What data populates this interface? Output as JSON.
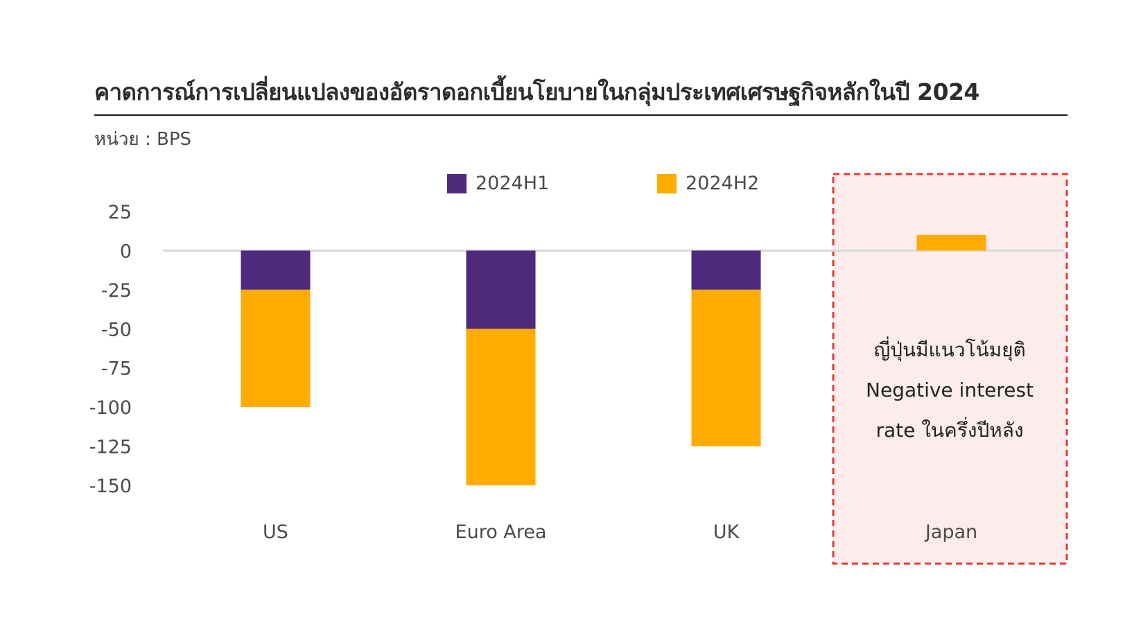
{
  "header": {
    "title": "คาดการณ์การเปลี่ยนแปลงของอัตราดอกเบี้ยนโยบายในกลุ่มประเทศเศรษฐกิจหลักในปี 2024",
    "unit": "หน่วย : BPS"
  },
  "annotation": {
    "line1": "ญี่ปุ่นมีแนวโน้มยุติ",
    "line2": "Negative interest",
    "line3": "rate ในครึ่งปีหลัง"
  },
  "colors": {
    "h1": "#4e2a7d",
    "h2": "#ffab00",
    "highlight_fill": "#fdecec",
    "highlight_border": "#e53935",
    "zero_line": "#d9d9d9"
  },
  "chart_data": {
    "type": "bar",
    "stacked": true,
    "categories": [
      "US",
      "Euro Area",
      "UK",
      "Japan"
    ],
    "series": [
      {
        "name": "2024H1",
        "values": [
          -25,
          -50,
          -25,
          0
        ]
      },
      {
        "name": "2024H2",
        "values": [
          -75,
          -100,
          -100,
          10
        ]
      }
    ],
    "yticks": [
      "25",
      "0",
      "-25",
      "-50",
      "-75",
      "-100",
      "-125",
      "-150"
    ],
    "ylim": [
      -150,
      25
    ],
    "legend": "top",
    "grid": false,
    "highlighted_category": "Japan"
  }
}
